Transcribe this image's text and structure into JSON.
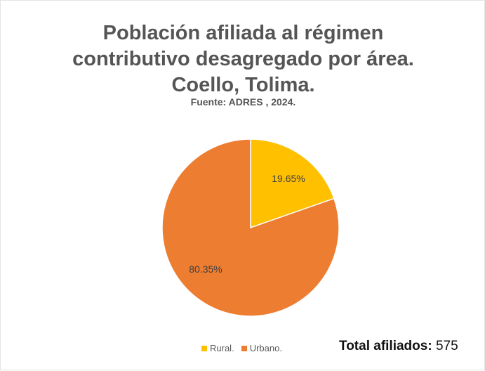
{
  "title_lines": [
    "Población afiliada al régimen",
    "contributivo desagregado por área.",
    "Coello, Tolima."
  ],
  "subtitle": "Fuente: ADRES , 2024.",
  "chart_data": {
    "type": "pie",
    "title": "Población afiliada al régimen contributivo desagregado por área. Coello, Tolima.",
    "subtitle": "Fuente: ADRES , 2024.",
    "slices": [
      {
        "name": "Rural.",
        "value": 19.65,
        "label": "19.65%",
        "color": "#FFC000"
      },
      {
        "name": "Urbano.",
        "value": 80.35,
        "label": "80.35%",
        "color": "#ED7D31"
      }
    ],
    "legend_position": "bottom"
  },
  "total": {
    "label": "Total afiliados:",
    "value": "575"
  }
}
